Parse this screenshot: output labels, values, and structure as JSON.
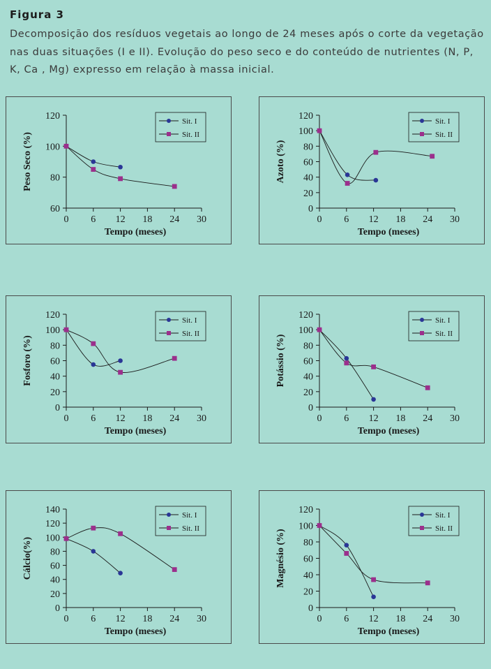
{
  "figure": {
    "title": "Figura 3",
    "caption": "Decomposição dos resíduos vegetais ao longo de 24 meses após o corte da vegetação nas duas situações (I e II). Evolução do peso seco e do conteúdo de nutrientes (N, P, K, Ca , Mg) expresso em relação à massa inicial."
  },
  "colors": {
    "sit1": "#2a3696",
    "sit2": "#9b2f8c",
    "line": "#1a1a1a"
  },
  "chart_data": [
    {
      "id": "peso-seco",
      "type": "line",
      "title": "",
      "xlabel": "Tempo (meses)",
      "ylabel": "Peso Seco (%)",
      "xlim": [
        0,
        30
      ],
      "xticks": [
        0,
        6,
        12,
        18,
        24,
        30
      ],
      "ylim": [
        60,
        120
      ],
      "yticks": [
        60,
        80,
        100,
        120
      ],
      "legend": [
        "Sit. I",
        "Sit. II"
      ],
      "series": [
        {
          "name": "Sit. I",
          "x": [
            0,
            6,
            12
          ],
          "y": [
            100,
            90,
            86.5
          ]
        },
        {
          "name": "Sit. II",
          "x": [
            0,
            6,
            12,
            24
          ],
          "y": [
            100,
            85,
            79,
            74
          ]
        }
      ]
    },
    {
      "id": "azoto",
      "type": "line",
      "title": "",
      "xlabel": "Tempo (meses)",
      "ylabel": "Azoto (%)",
      "xlim": [
        0,
        30
      ],
      "xticks": [
        0,
        6,
        12,
        18,
        24,
        30
      ],
      "ylim": [
        0,
        120
      ],
      "yticks": [
        0,
        20,
        40,
        60,
        80,
        100,
        120
      ],
      "legend": [
        "Sit. I",
        "Sit. II"
      ],
      "series": [
        {
          "name": "Sit. I",
          "x": [
            0,
            6.2,
            12.5
          ],
          "y": [
            100,
            43,
            36
          ]
        },
        {
          "name": "Sit. II",
          "x": [
            0,
            6.2,
            12.5,
            25
          ],
          "y": [
            100,
            32,
            72,
            67
          ]
        }
      ]
    },
    {
      "id": "fosforo",
      "type": "line",
      "title": "",
      "xlabel": "Tempo (meses)",
      "ylabel": "Fosforo (%)",
      "xlim": [
        0,
        30
      ],
      "xticks": [
        0,
        6,
        12,
        18,
        24,
        30
      ],
      "ylim": [
        0,
        120
      ],
      "yticks": [
        0,
        20,
        40,
        60,
        80,
        100,
        120
      ],
      "legend": [
        "Sit. I",
        "Sit. II"
      ],
      "series": [
        {
          "name": "Sit. I",
          "x": [
            0,
            6,
            12
          ],
          "y": [
            100,
            55,
            60
          ]
        },
        {
          "name": "Sit. II",
          "x": [
            0,
            6,
            12,
            24
          ],
          "y": [
            100,
            82,
            45,
            63
          ]
        }
      ]
    },
    {
      "id": "potassio",
      "type": "line",
      "title": "",
      "xlabel": "Tempo (meses)",
      "ylabel": "Potássio (%)",
      "xlim": [
        0,
        30
      ],
      "xticks": [
        0,
        6,
        12,
        18,
        24,
        30
      ],
      "ylim": [
        0,
        120
      ],
      "yticks": [
        0,
        20,
        40,
        60,
        80,
        100,
        120
      ],
      "legend": [
        "Sit. I",
        "Sit. II"
      ],
      "series": [
        {
          "name": "Sit. I",
          "x": [
            0,
            6,
            12
          ],
          "y": [
            100,
            63,
            10
          ]
        },
        {
          "name": "Sit. II",
          "x": [
            0,
            6,
            12,
            24
          ],
          "y": [
            100,
            57,
            52,
            25
          ]
        }
      ]
    },
    {
      "id": "calcio",
      "type": "line",
      "title": "",
      "xlabel": "Tempo (meses)",
      "ylabel": "Cálcio(%)",
      "xlim": [
        0,
        30
      ],
      "xticks": [
        0,
        6,
        12,
        18,
        24,
        30
      ],
      "ylim": [
        0,
        140
      ],
      "yticks": [
        0,
        20,
        40,
        60,
        80,
        100,
        120,
        140
      ],
      "legend": [
        "Sit. I",
        "Sit. II"
      ],
      "series": [
        {
          "name": "Sit. I",
          "x": [
            0,
            6,
            12
          ],
          "y": [
            98,
            80,
            49
          ]
        },
        {
          "name": "Sit. II",
          "x": [
            0,
            6,
            12,
            24
          ],
          "y": [
            98,
            113,
            105,
            54
          ]
        }
      ]
    },
    {
      "id": "magnesio",
      "type": "line",
      "title": "",
      "xlabel": "Tempo (meses)",
      "ylabel": "Magnésio (%)",
      "xlim": [
        0,
        30
      ],
      "xticks": [
        0,
        6,
        12,
        18,
        24,
        30
      ],
      "ylim": [
        0,
        120
      ],
      "yticks": [
        0,
        20,
        40,
        60,
        80,
        100,
        120
      ],
      "legend": [
        "Sit. I",
        "Sit. II"
      ],
      "series": [
        {
          "name": "Sit. I",
          "x": [
            0,
            6,
            12
          ],
          "y": [
            100,
            76,
            13
          ]
        },
        {
          "name": "Sit. II",
          "x": [
            0,
            6,
            12,
            24
          ],
          "y": [
            100,
            66,
            34,
            30
          ]
        }
      ]
    }
  ]
}
